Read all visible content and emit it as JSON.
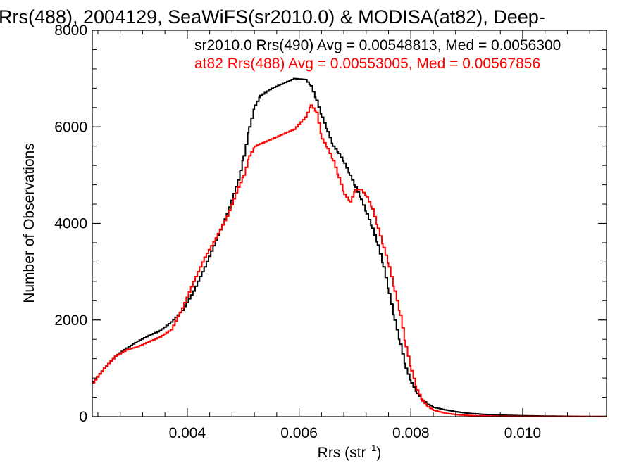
{
  "chart_data": {
    "type": "line",
    "title": "Rrs(488), 2004129, SeaWiFS(sr2010.0) & MODISA(at82), Deep-",
    "xlabel_main": "Rrs (str",
    "xlabel_sup": "−1",
    "xlabel_close": ")",
    "ylabel": "Number of Observations",
    "xlim": [
      0.0023,
      0.0115
    ],
    "ylim": [
      0,
      8000
    ],
    "x_ticks": [
      0.004,
      0.006,
      0.008,
      0.01
    ],
    "x_tick_labels": [
      "0.004",
      "0.006",
      "0.008",
      "0.010"
    ],
    "y_ticks": [
      0,
      2000,
      4000,
      6000,
      8000
    ],
    "y_tick_labels": [
      "0",
      "2000",
      "4000",
      "6000",
      "8000"
    ],
    "grid": false,
    "legend": [
      {
        "text": "sr2010.0 Rrs(490) Avg = 0.00548813, Med = 0.0056300",
        "color": "#000000"
      },
      {
        "text": "at82 Rrs(488) Avg = 0.00553005, Med = 0.00567856",
        "color": "#ff0000"
      }
    ],
    "series": [
      {
        "name": "sr2010.0 Rrs(490)",
        "color": "#000000",
        "points": [
          [
            0.0023,
            720
          ],
          [
            0.0025,
            1000
          ],
          [
            0.0027,
            1250
          ],
          [
            0.0029,
            1420
          ],
          [
            0.0031,
            1560
          ],
          [
            0.0033,
            1680
          ],
          [
            0.0035,
            1780
          ],
          [
            0.0037,
            1960
          ],
          [
            0.0039,
            2200
          ],
          [
            0.0041,
            2600
          ],
          [
            0.0043,
            3100
          ],
          [
            0.0045,
            3650
          ],
          [
            0.0047,
            4200
          ],
          [
            0.0049,
            4900
          ],
          [
            0.005,
            5400
          ],
          [
            0.0051,
            6000
          ],
          [
            0.0052,
            6450
          ],
          [
            0.0053,
            6650
          ],
          [
            0.0055,
            6800
          ],
          [
            0.0057,
            6900
          ],
          [
            0.0059,
            7000
          ],
          [
            0.0061,
            6980
          ],
          [
            0.0062,
            6850
          ],
          [
            0.0063,
            6550
          ],
          [
            0.0064,
            6200
          ],
          [
            0.0065,
            5900
          ],
          [
            0.0066,
            5600
          ],
          [
            0.0067,
            5450
          ],
          [
            0.0068,
            5250
          ],
          [
            0.0069,
            5000
          ],
          [
            0.007,
            4750
          ],
          [
            0.0071,
            4500
          ],
          [
            0.0072,
            4200
          ],
          [
            0.0073,
            3900
          ],
          [
            0.0074,
            3550
          ],
          [
            0.0075,
            3100
          ],
          [
            0.0076,
            2550
          ],
          [
            0.0077,
            2000
          ],
          [
            0.0078,
            1500
          ],
          [
            0.0079,
            1000
          ],
          [
            0.008,
            700
          ],
          [
            0.0081,
            480
          ],
          [
            0.0082,
            340
          ],
          [
            0.0083,
            250
          ],
          [
            0.0084,
            190
          ],
          [
            0.0086,
            140
          ],
          [
            0.0088,
            100
          ],
          [
            0.009,
            70
          ],
          [
            0.0093,
            45
          ],
          [
            0.0096,
            30
          ],
          [
            0.01,
            18
          ],
          [
            0.0105,
            10
          ],
          [
            0.011,
            5
          ],
          [
            0.0115,
            2
          ]
        ]
      },
      {
        "name": "at82 Rrs(488)",
        "color": "#ff0000",
        "points": [
          [
            0.0023,
            700
          ],
          [
            0.0025,
            1000
          ],
          [
            0.0027,
            1250
          ],
          [
            0.0029,
            1380
          ],
          [
            0.0031,
            1450
          ],
          [
            0.0033,
            1550
          ],
          [
            0.0035,
            1650
          ],
          [
            0.0037,
            1800
          ],
          [
            0.0039,
            2250
          ],
          [
            0.0041,
            2800
          ],
          [
            0.0043,
            3300
          ],
          [
            0.0045,
            3700
          ],
          [
            0.0047,
            4150
          ],
          [
            0.0049,
            4750
          ],
          [
            0.005,
            5000
          ],
          [
            0.0051,
            5400
          ],
          [
            0.0052,
            5600
          ],
          [
            0.0053,
            5650
          ],
          [
            0.0055,
            5750
          ],
          [
            0.0057,
            5850
          ],
          [
            0.0059,
            5950
          ],
          [
            0.0061,
            6200
          ],
          [
            0.0062,
            6450
          ],
          [
            0.0063,
            6300
          ],
          [
            0.0064,
            5750
          ],
          [
            0.0065,
            5550
          ],
          [
            0.0066,
            5300
          ],
          [
            0.0067,
            4950
          ],
          [
            0.0068,
            4600
          ],
          [
            0.0069,
            4450
          ],
          [
            0.007,
            4700
          ],
          [
            0.0071,
            4700
          ],
          [
            0.0072,
            4550
          ],
          [
            0.0073,
            4300
          ],
          [
            0.0074,
            3900
          ],
          [
            0.0075,
            3500
          ],
          [
            0.0076,
            3100
          ],
          [
            0.0077,
            2600
          ],
          [
            0.0078,
            2100
          ],
          [
            0.0079,
            1450
          ],
          [
            0.008,
            950
          ],
          [
            0.0081,
            550
          ],
          [
            0.0082,
            320
          ],
          [
            0.0083,
            200
          ],
          [
            0.0084,
            130
          ],
          [
            0.0086,
            70
          ],
          [
            0.0088,
            40
          ],
          [
            0.009,
            25
          ],
          [
            0.0093,
            15
          ],
          [
            0.0096,
            8
          ],
          [
            0.01,
            4
          ],
          [
            0.0105,
            2
          ],
          [
            0.011,
            1
          ],
          [
            0.0115,
            0
          ]
        ]
      }
    ]
  }
}
